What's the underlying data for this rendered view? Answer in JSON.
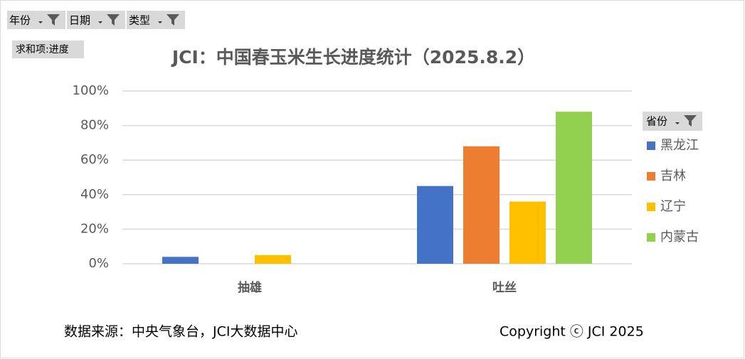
{
  "chart_data": {
    "type": "bar",
    "title": "JCI：中国春玉米生长进度统计（2025.8.2）",
    "categories": [
      "抽雄",
      "吐丝"
    ],
    "series": [
      {
        "name": "黑龙江",
        "color": "#4472c4",
        "values": [
          4,
          45
        ]
      },
      {
        "name": "吉林",
        "color": "#ed7d31",
        "values": [
          null,
          68
        ]
      },
      {
        "name": "辽宁",
        "color": "#ffc000",
        "values": [
          5,
          36
        ]
      },
      {
        "name": "内蒙古",
        "color": "#92d050",
        "values": [
          null,
          88
        ]
      }
    ],
    "ylim": [
      0,
      100
    ],
    "yticks": [
      {
        "value": 0,
        "label": "0%"
      },
      {
        "value": 20,
        "label": "20%"
      },
      {
        "value": 40,
        "label": "40%"
      },
      {
        "value": 60,
        "label": "60%"
      },
      {
        "value": 80,
        "label": "80%"
      },
      {
        "value": 100,
        "label": "100%"
      }
    ],
    "grid": true,
    "legend_title": "省份",
    "filter_buttons": [
      "年份",
      "日期",
      "类型"
    ],
    "value_field": "求和项:进度",
    "source": "数据来源：中央气象台，JCI大数据中心",
    "copyright": "Copyright ⓒ JCI 2025"
  }
}
